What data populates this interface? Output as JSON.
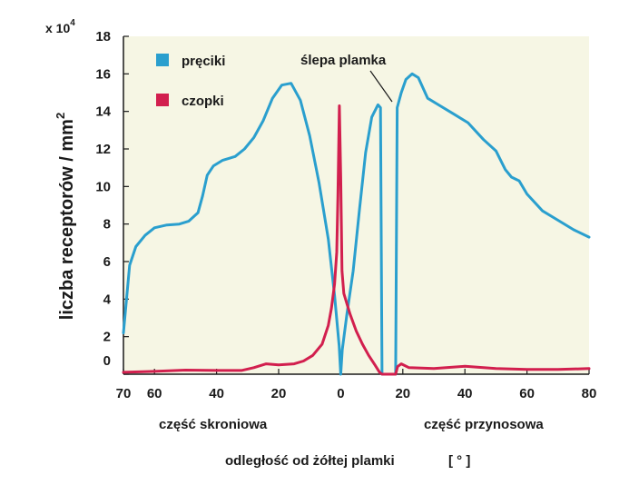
{
  "chart_data": {
    "type": "line",
    "y_multiplier": "x 10",
    "y_multiplier_exp": "4",
    "ylabel": "liczba receptorów / mm",
    "ylabel_exp": "2",
    "xlabel": "odległość od żółtej plamki",
    "xlabel_unit": "[ ° ]",
    "region_labels": {
      "left": "część skroniowa",
      "right": "część przynosowa"
    },
    "annotation": "ślepa plamka",
    "ylim": [
      0,
      18
    ],
    "xlim": [
      -70,
      80
    ],
    "yticks": [
      0,
      2,
      4,
      6,
      8,
      10,
      12,
      14,
      16,
      18
    ],
    "yticklabels": [
      "0",
      "2",
      "4",
      "6",
      "8",
      "10",
      "12",
      "14",
      "16",
      "18"
    ],
    "xticks": [
      -70,
      -60,
      -40,
      -20,
      0,
      20,
      40,
      60,
      80
    ],
    "xticklabels": [
      "70",
      "60",
      "40",
      "20",
      "0",
      "20",
      "40",
      "60",
      "80"
    ],
    "background_color": "#f6f6e4",
    "series": [
      {
        "name": "pręciki",
        "color": "#2a9fce",
        "points": [
          [
            -70,
            2.2
          ],
          [
            -68,
            5.8
          ],
          [
            -66,
            6.8
          ],
          [
            -63,
            7.4
          ],
          [
            -60,
            7.8
          ],
          [
            -56,
            7.95
          ],
          [
            -52,
            8.0
          ],
          [
            -49,
            8.15
          ],
          [
            -46,
            8.6
          ],
          [
            -44.5,
            9.5
          ],
          [
            -43,
            10.6
          ],
          [
            -41,
            11.1
          ],
          [
            -38,
            11.4
          ],
          [
            -34,
            11.6
          ],
          [
            -31,
            12.0
          ],
          [
            -28,
            12.6
          ],
          [
            -25,
            13.5
          ],
          [
            -22,
            14.7
          ],
          [
            -19,
            15.4
          ],
          [
            -16,
            15.5
          ],
          [
            -13,
            14.6
          ],
          [
            -10,
            12.7
          ],
          [
            -7,
            10.2
          ],
          [
            -4,
            7.2
          ],
          [
            -2,
            4.2
          ],
          [
            -0.5,
            1.5
          ],
          [
            0,
            0
          ],
          [
            0.5,
            1.3
          ],
          [
            2,
            3.2
          ],
          [
            4,
            5.5
          ],
          [
            6,
            8.7
          ],
          [
            8,
            11.8
          ],
          [
            10,
            13.7
          ],
          [
            12,
            14.35
          ],
          [
            12.8,
            14.2
          ],
          [
            13.3,
            0
          ],
          [
            17.7,
            0
          ],
          [
            18.2,
            14.2
          ],
          [
            19.5,
            15.0
          ],
          [
            21,
            15.7
          ],
          [
            23,
            16.0
          ],
          [
            25,
            15.8
          ],
          [
            28,
            14.7
          ],
          [
            31,
            14.4
          ],
          [
            36,
            13.9
          ],
          [
            41,
            13.4
          ],
          [
            46,
            12.5
          ],
          [
            50,
            11.9
          ],
          [
            53,
            10.9
          ],
          [
            55,
            10.5
          ],
          [
            57.5,
            10.3
          ],
          [
            60,
            9.6
          ],
          [
            65,
            8.7
          ],
          [
            70,
            8.2
          ],
          [
            75,
            7.7
          ],
          [
            80,
            7.3
          ]
        ]
      },
      {
        "name": "czopki",
        "color": "#d21f4e",
        "points": [
          [
            -70,
            0.1
          ],
          [
            -60,
            0.15
          ],
          [
            -50,
            0.22
          ],
          [
            -40,
            0.2
          ],
          [
            -32,
            0.2
          ],
          [
            -28,
            0.35
          ],
          [
            -24,
            0.55
          ],
          [
            -20,
            0.5
          ],
          [
            -15,
            0.55
          ],
          [
            -12,
            0.7
          ],
          [
            -9,
            1.0
          ],
          [
            -6,
            1.6
          ],
          [
            -4,
            2.6
          ],
          [
            -3,
            3.5
          ],
          [
            -2,
            4.8
          ],
          [
            -1.3,
            6.5
          ],
          [
            -0.9,
            9.5
          ],
          [
            -0.45,
            14.3
          ],
          [
            0,
            10.5
          ],
          [
            0.4,
            5.5
          ],
          [
            1,
            4.3
          ],
          [
            3,
            3.2
          ],
          [
            5,
            2.3
          ],
          [
            7,
            1.6
          ],
          [
            9,
            1.0
          ],
          [
            11,
            0.5
          ],
          [
            12.5,
            0.1
          ],
          [
            13.3,
            0
          ],
          [
            17.7,
            0
          ],
          [
            18.3,
            0.4
          ],
          [
            19.5,
            0.55
          ],
          [
            22,
            0.35
          ],
          [
            30,
            0.3
          ],
          [
            40,
            0.42
          ],
          [
            50,
            0.3
          ],
          [
            60,
            0.25
          ],
          [
            70,
            0.25
          ],
          [
            80,
            0.3
          ]
        ]
      }
    ]
  }
}
